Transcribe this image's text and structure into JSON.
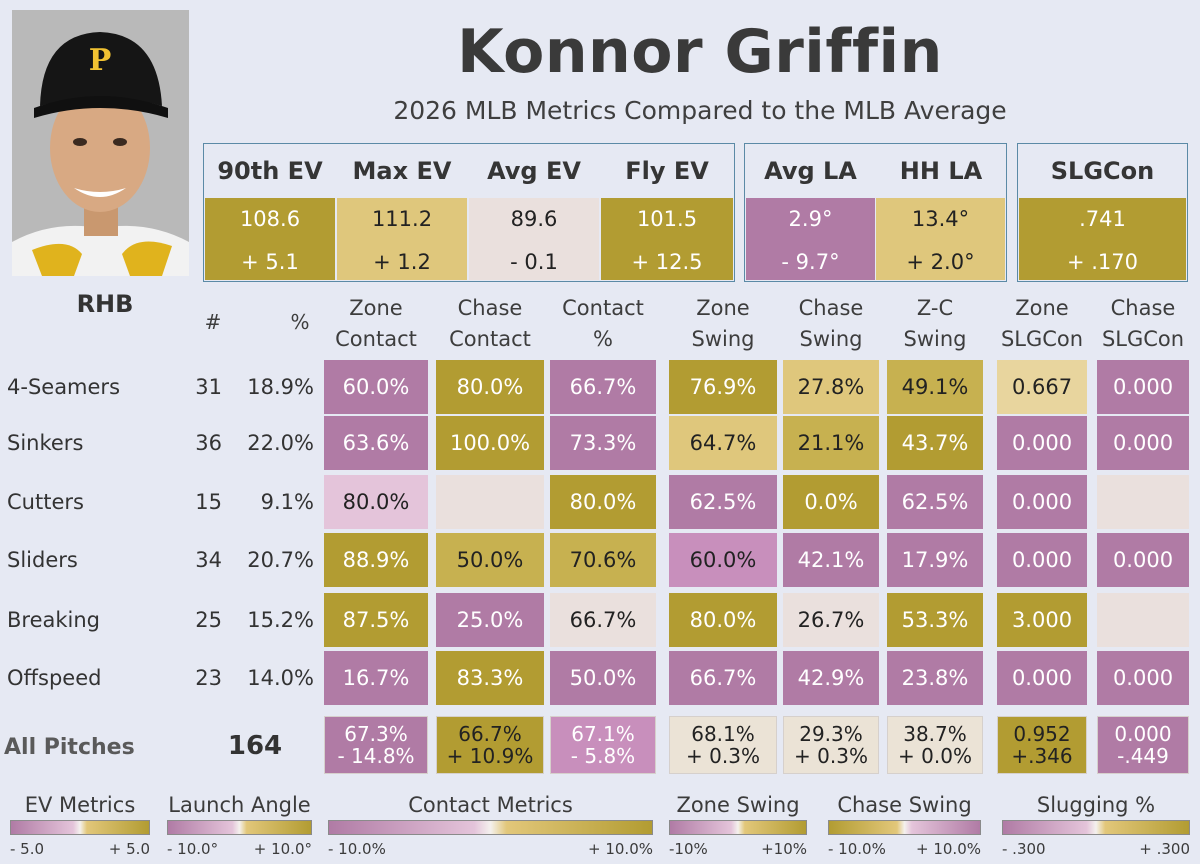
{
  "player": {
    "name": "Konnor Griffin",
    "subtitle": "2026 MLB Metrics Compared to the MLB Average",
    "hand": "RHB",
    "cap_logo": "P"
  },
  "colors": {
    "gold_dark": "#b29c32",
    "gold_mid": "#c7b150",
    "gold_light": "#e2c77a",
    "neutral": "#eae0dd",
    "pink_light": "#e4c4da",
    "pink_mid": "#c88fbc",
    "purple": "#b07ba5"
  },
  "ev_box": {
    "headers": [
      "90th EV",
      "Max EV",
      "Avg EV",
      "Fly EV"
    ],
    "values": [
      "108.6",
      "111.2",
      "89.6",
      "101.5"
    ],
    "diffs": [
      "+ 5.1",
      "+ 1.2",
      "- 0.1",
      "+ 12.5"
    ],
    "colors": [
      "#b29c32",
      "#dfc77c",
      "#eae0dd",
      "#b29c32"
    ]
  },
  "la_box": {
    "headers": [
      "Avg LA",
      "HH LA"
    ],
    "values": [
      "2.9°",
      "13.4°"
    ],
    "diffs": [
      "- 9.7°",
      "+ 2.0°"
    ],
    "colors": [
      "#b07ba5",
      "#dfc77c"
    ]
  },
  "slg_box": {
    "headers": [
      "SLGCon"
    ],
    "values": [
      ".741"
    ],
    "diffs": [
      "+ .170"
    ],
    "colors": [
      "#b29c32"
    ]
  },
  "table": {
    "count_header": "#",
    "pct_header": "%",
    "columns": [
      {
        "line1": "Zone",
        "line2": "Contact"
      },
      {
        "line1": "Chase",
        "line2": "Contact"
      },
      {
        "line1": "Contact",
        "line2": "%"
      },
      {
        "line1": "Zone",
        "line2": "Swing"
      },
      {
        "line1": "Chase",
        "line2": "Swing"
      },
      {
        "line1": "Z-C",
        "line2": "Swing"
      },
      {
        "line1": "Zone",
        "line2": "SLGCon"
      },
      {
        "line1": "Chase",
        "line2": "SLGCon"
      }
    ],
    "rows": [
      {
        "label": "4-Seamers",
        "count": "31",
        "pct": "18.9%",
        "cells": [
          "60.0%",
          "80.0%",
          "66.7%",
          "76.9%",
          "27.8%",
          "49.1%",
          "0.667",
          "0.000"
        ],
        "colors": [
          "#b07ba5",
          "#b29c32",
          "#b07ba5",
          "#b29c32",
          "#dfc77c",
          "#c7b150",
          "#e8d59e",
          "#b07ba5"
        ]
      },
      {
        "label": "Sinkers",
        "count": "36",
        "pct": "22.0%",
        "cells": [
          "63.6%",
          "100.0%",
          "73.3%",
          "64.7%",
          "21.1%",
          "43.7%",
          "0.000",
          "0.000"
        ],
        "colors": [
          "#b07ba5",
          "#b29c32",
          "#b07ba5",
          "#dfc77c",
          "#c7b150",
          "#b29c32",
          "#b07ba5",
          "#b07ba5"
        ]
      },
      {
        "label": "Cutters",
        "count": "15",
        "pct": "9.1%",
        "cells": [
          "80.0%",
          "",
          "80.0%",
          "62.5%",
          "0.0%",
          "62.5%",
          "0.000",
          ""
        ],
        "colors": [
          "#e4c4da",
          "#eae0dd",
          "#b29c32",
          "#b07ba5",
          "#b29c32",
          "#b07ba5",
          "#b07ba5",
          "#eae0dd"
        ]
      },
      {
        "label": "Sliders",
        "count": "34",
        "pct": "20.7%",
        "cells": [
          "88.9%",
          "50.0%",
          "70.6%",
          "60.0%",
          "42.1%",
          "17.9%",
          "0.000",
          "0.000"
        ],
        "colors": [
          "#b29c32",
          "#c7b150",
          "#c7b150",
          "#c88fbc",
          "#b07ba5",
          "#b07ba5",
          "#b07ba5",
          "#b07ba5"
        ]
      },
      {
        "label": "Breaking",
        "count": "25",
        "pct": "15.2%",
        "cells": [
          "87.5%",
          "25.0%",
          "66.7%",
          "80.0%",
          "26.7%",
          "53.3%",
          "3.000",
          ""
        ],
        "colors": [
          "#b29c32",
          "#b07ba5",
          "#eae0dd",
          "#b29c32",
          "#eae0dd",
          "#b29c32",
          "#b29c32",
          "#eae0dd"
        ]
      },
      {
        "label": "Offspeed",
        "count": "23",
        "pct": "14.0%",
        "cells": [
          "16.7%",
          "83.3%",
          "50.0%",
          "66.7%",
          "42.9%",
          "23.8%",
          "0.000",
          "0.000"
        ],
        "colors": [
          "#b07ba5",
          "#b29c32",
          "#b07ba5",
          "#b07ba5",
          "#b07ba5",
          "#b07ba5",
          "#b07ba5",
          "#b07ba5"
        ]
      }
    ],
    "totals": {
      "label": "All Pitches",
      "count": "164",
      "values": [
        "67.3%",
        "66.7%",
        "67.1%",
        "68.1%",
        "29.3%",
        "38.7%",
        "0.952",
        "0.000"
      ],
      "diffs": [
        "- 14.8%",
        "+ 10.9%",
        "- 5.8%",
        "+ 0.3%",
        "+ 0.3%",
        "+ 0.0%",
        "+.346",
        "-.449"
      ],
      "colors": [
        "#b07ba5",
        "#b29c32",
        "#c88fbc",
        "#ebe3d6",
        "#ebe3d6",
        "#ebe3d6",
        "#b29c32",
        "#b07ba5"
      ]
    }
  },
  "legends": [
    {
      "title": "EV Metrics",
      "low": "- 5.0",
      "high": "+ 5.0",
      "gradient": "pg"
    },
    {
      "title": "Launch Angle",
      "low": "- 10.0°",
      "high": "+ 10.0°",
      "gradient": "pg"
    },
    {
      "title": "Contact Metrics",
      "low": "- 10.0%",
      "high": "+ 10.0%",
      "gradient": "pg"
    },
    {
      "title": "Zone Swing",
      "low": "-10%",
      "high": "+10%",
      "gradient": "pg"
    },
    {
      "title": "Chase Swing",
      "low": "- 10.0%",
      "high": "+ 10.0%",
      "gradient": "gp"
    },
    {
      "title": "Slugging %",
      "low": "- .300",
      "high": "+ .300",
      "gradient": "pg"
    }
  ]
}
